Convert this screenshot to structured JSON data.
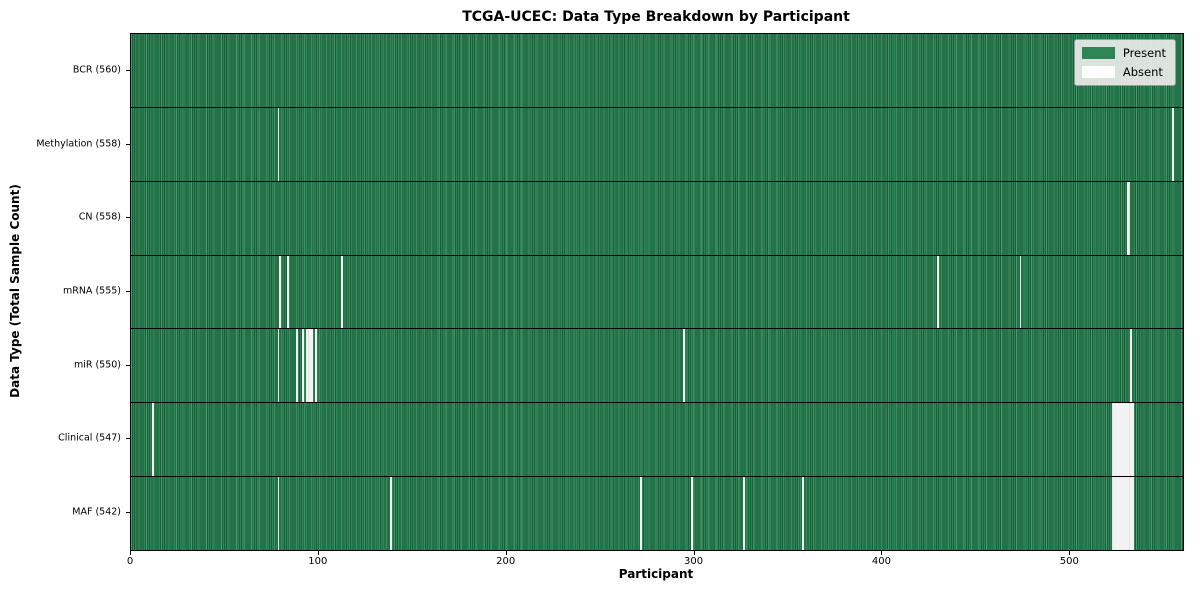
{
  "chart_data": {
    "type": "heatmap",
    "title": "TCGA-UCEC: Data Type Breakdown by Participant",
    "xlabel": "Participant",
    "ylabel": "Data Type (Total Sample Count)",
    "x_ticks": [
      0,
      100,
      200,
      300,
      400,
      500
    ],
    "x_max": 560,
    "total_participants": 560,
    "grid": false,
    "legend": {
      "position": "upper right",
      "entries": [
        {
          "label": "Present",
          "color": "#2e8657"
        },
        {
          "label": "Absent",
          "color": "#ffffff"
        }
      ]
    },
    "colors": {
      "present": "#2e8657",
      "present_dark": "#1b5e3a",
      "absent": "#ffffff"
    },
    "rows": [
      {
        "label": "BCR",
        "count": 560,
        "tick_label": "BCR (560)",
        "absent": []
      },
      {
        "label": "Methylation",
        "count": 558,
        "tick_label": "Methylation (558)",
        "absent": [
          78,
          554
        ]
      },
      {
        "label": "CN",
        "count": 558,
        "tick_label": "CN (558)",
        "absent": [
          530,
          531
        ]
      },
      {
        "label": "mRNA",
        "count": 555,
        "tick_label": "mRNA (555)",
        "absent": [
          79,
          83,
          112,
          429,
          473
        ]
      },
      {
        "label": "miR",
        "count": 550,
        "tick_label": "miR (550)",
        "absent": [
          78,
          88,
          91,
          93,
          94,
          95,
          96,
          98,
          294,
          532
        ]
      },
      {
        "label": "Clinical",
        "count": 547,
        "tick_label": "Clinical (547)",
        "absent": [
          11,
          522,
          523,
          524,
          525,
          526,
          527,
          528,
          529,
          530,
          531,
          532,
          533
        ]
      },
      {
        "label": "MAF",
        "count": 542,
        "tick_label": "MAF (542)",
        "absent": [
          78,
          138,
          271,
          298,
          326,
          357,
          522,
          523,
          524,
          525,
          526,
          527,
          528,
          529,
          530,
          531,
          532,
          533
        ]
      }
    ]
  }
}
